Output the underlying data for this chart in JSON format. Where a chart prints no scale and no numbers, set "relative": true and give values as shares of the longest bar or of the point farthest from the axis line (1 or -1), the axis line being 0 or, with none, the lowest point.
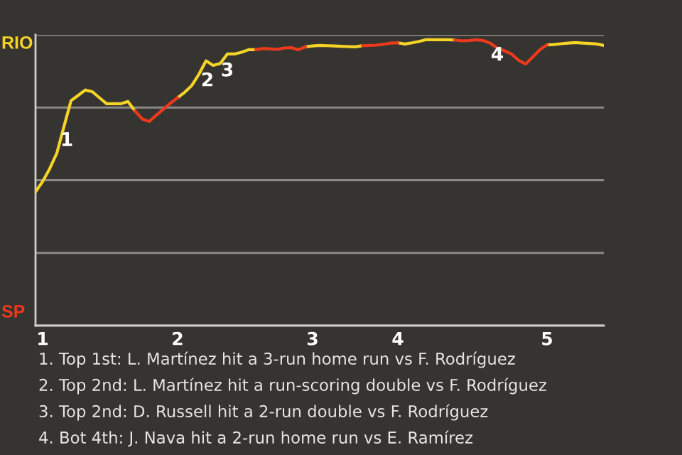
{
  "chart_data": {
    "type": "line",
    "relative": true,
    "categories": [
      null,
      "1",
      null,
      null,
      null,
      null,
      null,
      null,
      null,
      null,
      null,
      null,
      null,
      null,
      null,
      null,
      null,
      null,
      null,
      null,
      "2",
      null,
      null,
      null,
      null,
      null,
      null,
      null,
      null,
      null,
      null,
      null,
      null,
      null,
      null,
      null,
      null,
      null,
      null,
      "3",
      null,
      null,
      null,
      null,
      null,
      null,
      null,
      null,
      null,
      null,
      null,
      "4",
      null,
      null,
      null,
      null,
      null,
      null,
      null,
      null,
      null,
      null,
      null,
      null,
      null,
      null,
      null,
      null,
      null,
      null,
      null,
      null,
      "5",
      null,
      null,
      null,
      null,
      null,
      null,
      null,
      null
    ],
    "series": [
      {
        "color": "#f5d327",
        "values": [
          0.468,
          0.504,
          0.549,
          0.603,
          0.696,
          0.787,
          0.805,
          0.824,
          0.818,
          0.797,
          0.776,
          0.776,
          0.776,
          0.784,
          0.751,
          null,
          null,
          null,
          null,
          null,
          0.797,
          0.816,
          0.84,
          0.879,
          0.926,
          0.91,
          0.917,
          0.95,
          0.95,
          0.956,
          0.965,
          0.965,
          null,
          null,
          null,
          null,
          null,
          null,
          0.975,
          0.978,
          0.98,
          0.979,
          0.978,
          0.977,
          0.976,
          0.975,
          0.979,
          null,
          null,
          null,
          null,
          0.989,
          0.985,
          0.989,
          0.994,
          1,
          1,
          1,
          1,
          0.999,
          null,
          null,
          null,
          null,
          null,
          null,
          null,
          null,
          null,
          null,
          null,
          null,
          0.982,
          0.983,
          0.986,
          0.988,
          0.99,
          0.988,
          0.987,
          0.985,
          0.98
        ]
      },
      {
        "color": "#ee3a1c",
        "values": [
          null,
          null,
          null,
          null,
          null,
          null,
          null,
          null,
          null,
          null,
          null,
          null,
          null,
          null,
          0.751,
          0.723,
          0.714,
          0.736,
          0.757,
          0.778,
          0.797,
          null,
          null,
          null,
          null,
          null,
          null,
          null,
          null,
          null,
          null,
          0.965,
          0.969,
          0.968,
          0.966,
          0.971,
          0.972,
          0.965,
          0.975,
          null,
          null,
          null,
          null,
          null,
          null,
          null,
          0.979,
          0.98,
          0.981,
          0.984,
          0.988,
          0.989,
          null,
          null,
          null,
          null,
          null,
          null,
          null,
          0.999,
          0.996,
          0.997,
          1,
          0.997,
          0.988,
          0.971,
          0.961,
          0.95,
          0.928,
          0.915,
          0.94,
          0.965,
          0.982,
          null,
          null,
          null,
          null,
          null,
          null,
          null,
          null
        ]
      }
    ],
    "grid": "y",
    "annotations": [
      "1",
      "2",
      "3",
      "4",
      "RIO",
      "SP",
      "1. Top 1st: L. Martínez hit a 3-run home run vs F. Rodríguez",
      "2. Top 2nd: L. Martínez hit a run-scoring double vs F. Rodríguez",
      "3. Top 2nd: D. Russell hit a 2-run double vs F. Rodríguez",
      "4. Bot 4th: J. Nava hit a 2-run home run vs E. Ramírez"
    ]
  }
}
